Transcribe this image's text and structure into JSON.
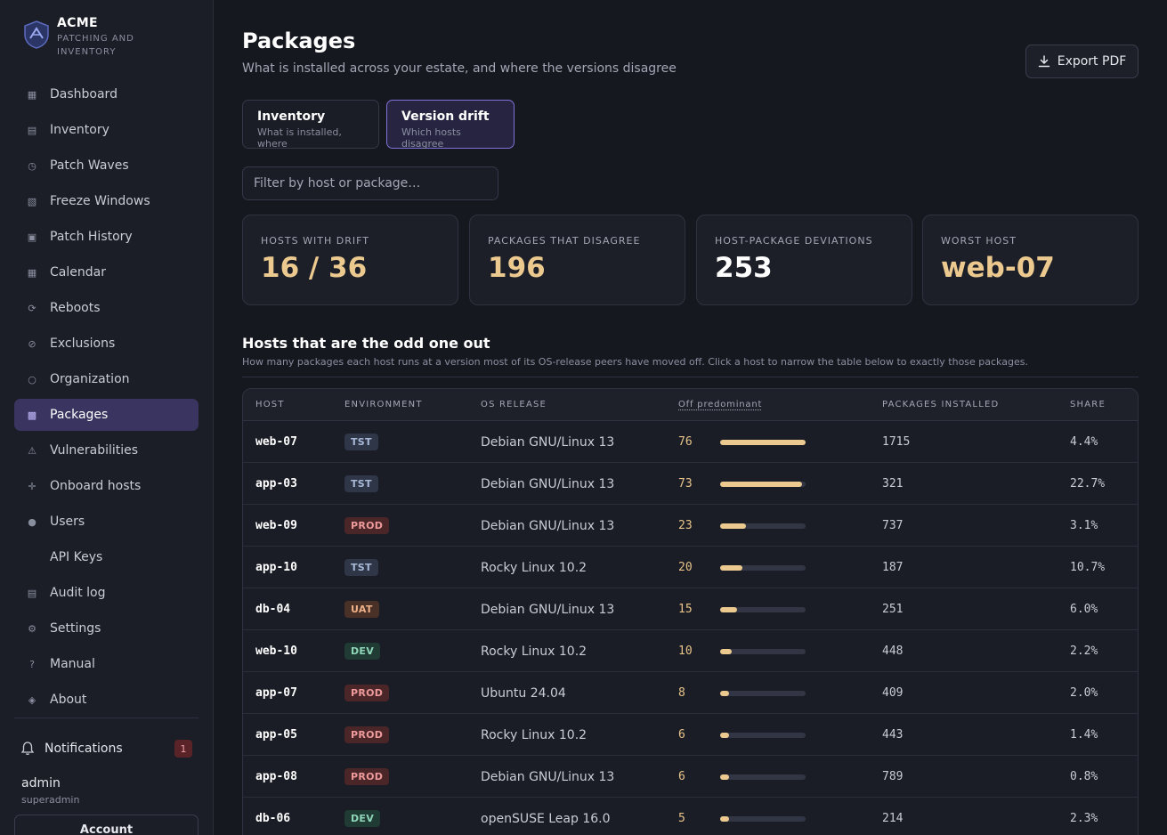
{
  "brand": {
    "name": "ACME",
    "subtitle": "PATCHING AND INVENTORY"
  },
  "sidebar": {
    "items": [
      {
        "label": "Dashboard",
        "icon": "▦",
        "name": "dashboard"
      },
      {
        "label": "Inventory",
        "icon": "▤",
        "name": "inventory"
      },
      {
        "label": "Patch Waves",
        "icon": "◷",
        "name": "patch-waves"
      },
      {
        "label": "Freeze Windows",
        "icon": "▧",
        "name": "freeze-windows"
      },
      {
        "label": "Patch History",
        "icon": "▣",
        "name": "patch-history"
      },
      {
        "label": "Calendar",
        "icon": "▦",
        "name": "calendar"
      },
      {
        "label": "Reboots",
        "icon": "⟳",
        "name": "reboots"
      },
      {
        "label": "Exclusions",
        "icon": "⊘",
        "name": "exclusions"
      },
      {
        "label": "Organization",
        "icon": "○",
        "name": "organization"
      },
      {
        "label": "Packages",
        "icon": "▩",
        "name": "packages",
        "active": true
      },
      {
        "label": "Vulnerabilities",
        "icon": "⚠",
        "name": "vulnerabilities"
      },
      {
        "label": "Onboard hosts",
        "icon": "✛",
        "name": "onboard-hosts"
      },
      {
        "label": "Users",
        "icon": "●",
        "name": "users"
      },
      {
        "label": "API Keys",
        "icon": "",
        "name": "api-keys"
      },
      {
        "label": "Audit log",
        "icon": "▤",
        "name": "audit-log"
      },
      {
        "label": "Settings",
        "icon": "⚙",
        "name": "settings"
      },
      {
        "label": "Manual",
        "icon": "?",
        "name": "manual"
      },
      {
        "label": "About",
        "icon": "◈",
        "name": "about"
      }
    ],
    "notifications": {
      "label": "Notifications",
      "count": "1"
    },
    "user": {
      "name": "admin",
      "role": "superadmin"
    },
    "account_label": "Account"
  },
  "header": {
    "title": "Packages",
    "subtitle": "What is installed across your estate, and where the versions disagree",
    "export_label": "Export PDF"
  },
  "tabs": [
    {
      "title": "Inventory",
      "subtitle": "What is installed, where"
    },
    {
      "title": "Version drift",
      "subtitle": "Which hosts disagree",
      "active": true
    }
  ],
  "filter": {
    "placeholder": "Filter by host or package…",
    "value": ""
  },
  "stats": [
    {
      "label": "HOSTS WITH DRIFT",
      "value": "16 / 36",
      "color": "#ecc98f"
    },
    {
      "label": "PACKAGES THAT DISAGREE",
      "value": "196",
      "color": "#ecc98f"
    },
    {
      "label": "HOST-PACKAGE DEVIATIONS",
      "value": "253",
      "color": "#ffffff"
    },
    {
      "label": "WORST HOST",
      "value": "web-07",
      "color": "#ecc98f"
    }
  ],
  "section": {
    "title": "Hosts that are the odd one out",
    "subtitle": "How many packages each host runs at a version most of its OS-release peers have moved off. Click a host to narrow the table below to exactly those packages."
  },
  "table": {
    "columns": [
      "HOST",
      "ENVIRONMENT",
      "OS RELEASE",
      "Off predominant",
      "PACKAGES INSTALLED",
      "SHARE"
    ],
    "max_off": 76,
    "rows": [
      {
        "host": "web-07",
        "env": "TST",
        "os": "Debian GNU/Linux 13",
        "off": 76,
        "pkgs": "1715",
        "share": "4.4%"
      },
      {
        "host": "app-03",
        "env": "TST",
        "os": "Debian GNU/Linux 13",
        "off": 73,
        "pkgs": "321",
        "share": "22.7%"
      },
      {
        "host": "web-09",
        "env": "PROD",
        "os": "Debian GNU/Linux 13",
        "off": 23,
        "pkgs": "737",
        "share": "3.1%"
      },
      {
        "host": "app-10",
        "env": "TST",
        "os": "Rocky Linux 10.2",
        "off": 20,
        "pkgs": "187",
        "share": "10.7%"
      },
      {
        "host": "db-04",
        "env": "UAT",
        "os": "Debian GNU/Linux 13",
        "off": 15,
        "pkgs": "251",
        "share": "6.0%"
      },
      {
        "host": "web-10",
        "env": "DEV",
        "os": "Rocky Linux 10.2",
        "off": 10,
        "pkgs": "448",
        "share": "2.2%"
      },
      {
        "host": "app-07",
        "env": "PROD",
        "os": "Ubuntu 24.04",
        "off": 8,
        "pkgs": "409",
        "share": "2.0%"
      },
      {
        "host": "app-05",
        "env": "PROD",
        "os": "Rocky Linux 10.2",
        "off": 6,
        "pkgs": "443",
        "share": "1.4%"
      },
      {
        "host": "app-08",
        "env": "PROD",
        "os": "Debian GNU/Linux 13",
        "off": 6,
        "pkgs": "789",
        "share": "0.8%"
      },
      {
        "host": "db-06",
        "env": "DEV",
        "os": "openSUSE Leap 16.0",
        "off": 5,
        "pkgs": "214",
        "share": "2.3%"
      }
    ]
  }
}
